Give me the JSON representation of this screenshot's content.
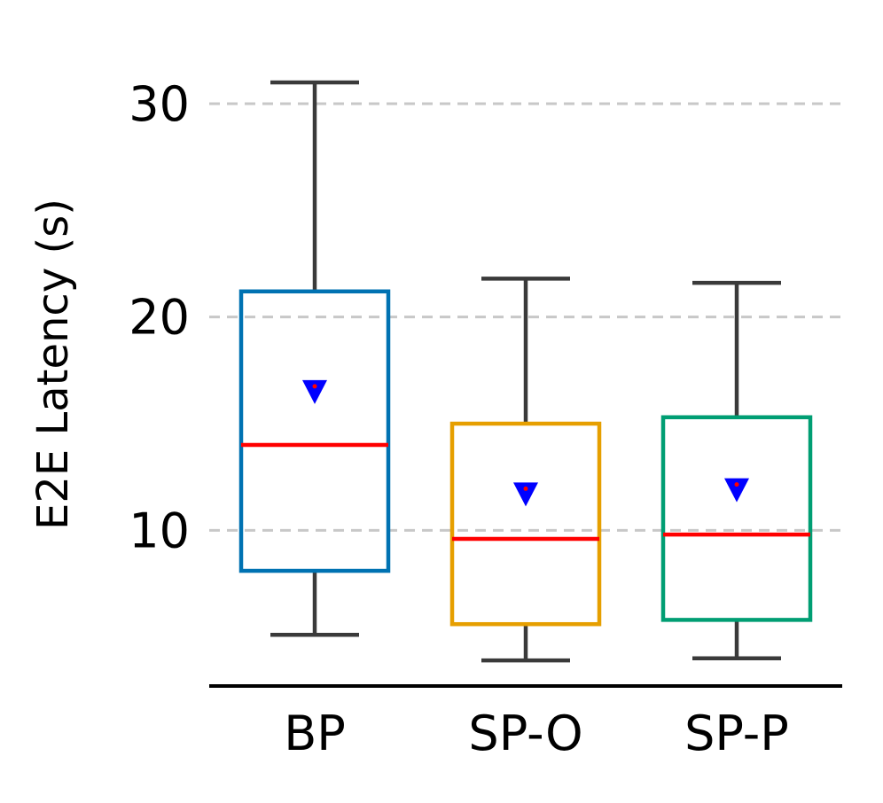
{
  "chart_data": {
    "type": "box",
    "title": "",
    "xlabel": "",
    "ylabel": "E2E Latency (s)",
    "ylim": [
      2.7,
      33.2
    ],
    "yticks": [
      10,
      20,
      30
    ],
    "grid": "y-dashed",
    "categories": [
      "BP",
      "SP-O",
      "SP-P"
    ],
    "boxes": [
      {
        "name": "BP",
        "whislo": 5.1,
        "q1": 8.1,
        "median": 14.0,
        "q3": 21.2,
        "whishi": 31.0,
        "mean": 16.5
      },
      {
        "name": "SP-O",
        "whislo": 3.9,
        "q1": 5.6,
        "median": 9.6,
        "q3": 15.0,
        "whishi": 21.8,
        "mean": 11.7
      },
      {
        "name": "SP-P",
        "whislo": 4.0,
        "q1": 5.8,
        "median": 9.8,
        "q3": 15.3,
        "whishi": 21.6,
        "mean": 11.9
      }
    ],
    "colors": {
      "boxes": [
        "#0072B2",
        "#E69F00",
        "#009E73"
      ],
      "median": "#ff0000",
      "mean_marker": "#0000ff",
      "whisker": "#3a3a3a",
      "grid": "#c8c8c8",
      "axis": "#000000"
    }
  }
}
